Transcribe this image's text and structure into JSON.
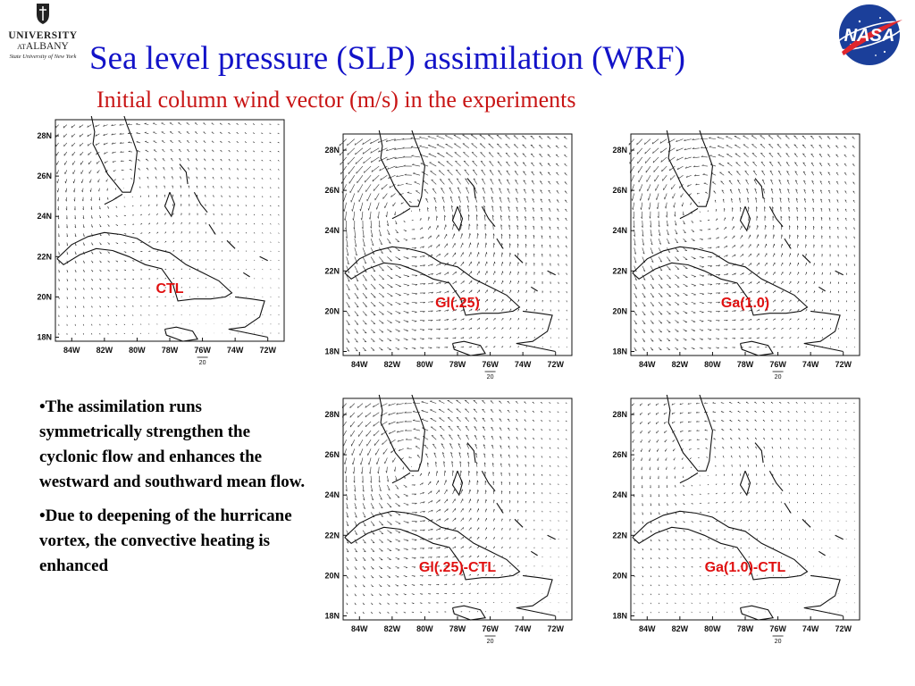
{
  "logo_university": {
    "line1": "UNIVERSITY",
    "at": "AT",
    "name": "ALBANY",
    "line3": "State University of New York"
  },
  "logo_nasa": {
    "text": "NASA"
  },
  "title": "Sea level pressure (SLP) assimilation (WRF)",
  "subtitle": "Initial column wind vector (m/s) in the experiments",
  "colors": {
    "title": "#1212c8",
    "subtitle": "#c81414",
    "panel_label": "#e01010"
  },
  "panels": [
    {
      "label": "CTL"
    },
    {
      "label": "Gl(.25)"
    },
    {
      "label": "Ga(1.0)"
    },
    {
      "label": "Gl(.25)-CTL"
    },
    {
      "label": "Ga(1.0)-CTL"
    }
  ],
  "axes": {
    "lon_ticks": [
      "84W",
      "82W",
      "80W",
      "78W",
      "76W",
      "74W",
      "72W"
    ],
    "lat_ticks": [
      "28N",
      "26N",
      "24N",
      "22N",
      "20N",
      "18N"
    ],
    "reference_vector": "20"
  },
  "bullets": [
    "The assimilation runs symmetrically strengthen the cyclonic flow and enhances the westward and southward mean flow.",
    "Due to deepening of the hurricane vortex,  the convective heating is enhanced"
  ]
}
